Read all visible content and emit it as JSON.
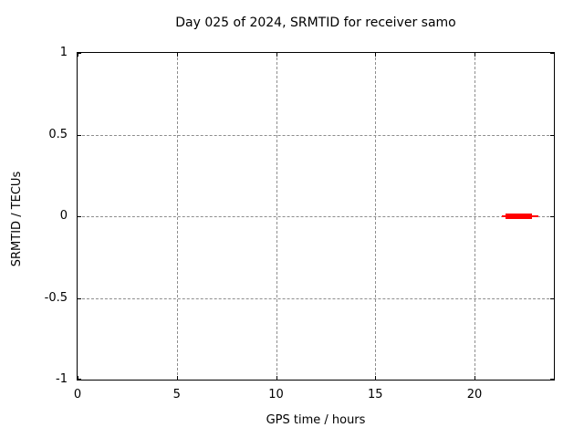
{
  "chart_data": {
    "type": "line",
    "title": "Day 025 of 2024, SRMTID for receiver samo",
    "xlabel": "GPS time / hours",
    "ylabel": "SRMTID / TECUs",
    "xlim": [
      0,
      24
    ],
    "ylim": [
      -1,
      1
    ],
    "xticks": [
      0,
      5,
      10,
      15,
      20
    ],
    "xtick_labels": [
      "0",
      "5",
      "10",
      "15",
      "20"
    ],
    "yticks": [
      -1,
      -0.5,
      0,
      0.5,
      1
    ],
    "ytick_labels": [
      "-1",
      "-0.5",
      "0",
      "0.5",
      "1"
    ],
    "grid": true,
    "grid_style": "dashed",
    "grid_color": "#8e8e8e",
    "border_color": "#000000",
    "background_color": "#ffffff",
    "legend": false,
    "series": [
      {
        "name": "SRMTID",
        "color": "#ff0000",
        "note": "flat trace at 0 TECUs, data present only between about 21.4 and 23.2 GPS hours",
        "segments": [
          {
            "kind": "thin-line",
            "x_start": 21.4,
            "x_end": 23.2,
            "y": 0,
            "thickness_px": 2
          },
          {
            "kind": "thick-bar",
            "x_start": 21.55,
            "x_end": 22.9,
            "y": 0,
            "thickness_px": 6
          }
        ]
      }
    ]
  }
}
